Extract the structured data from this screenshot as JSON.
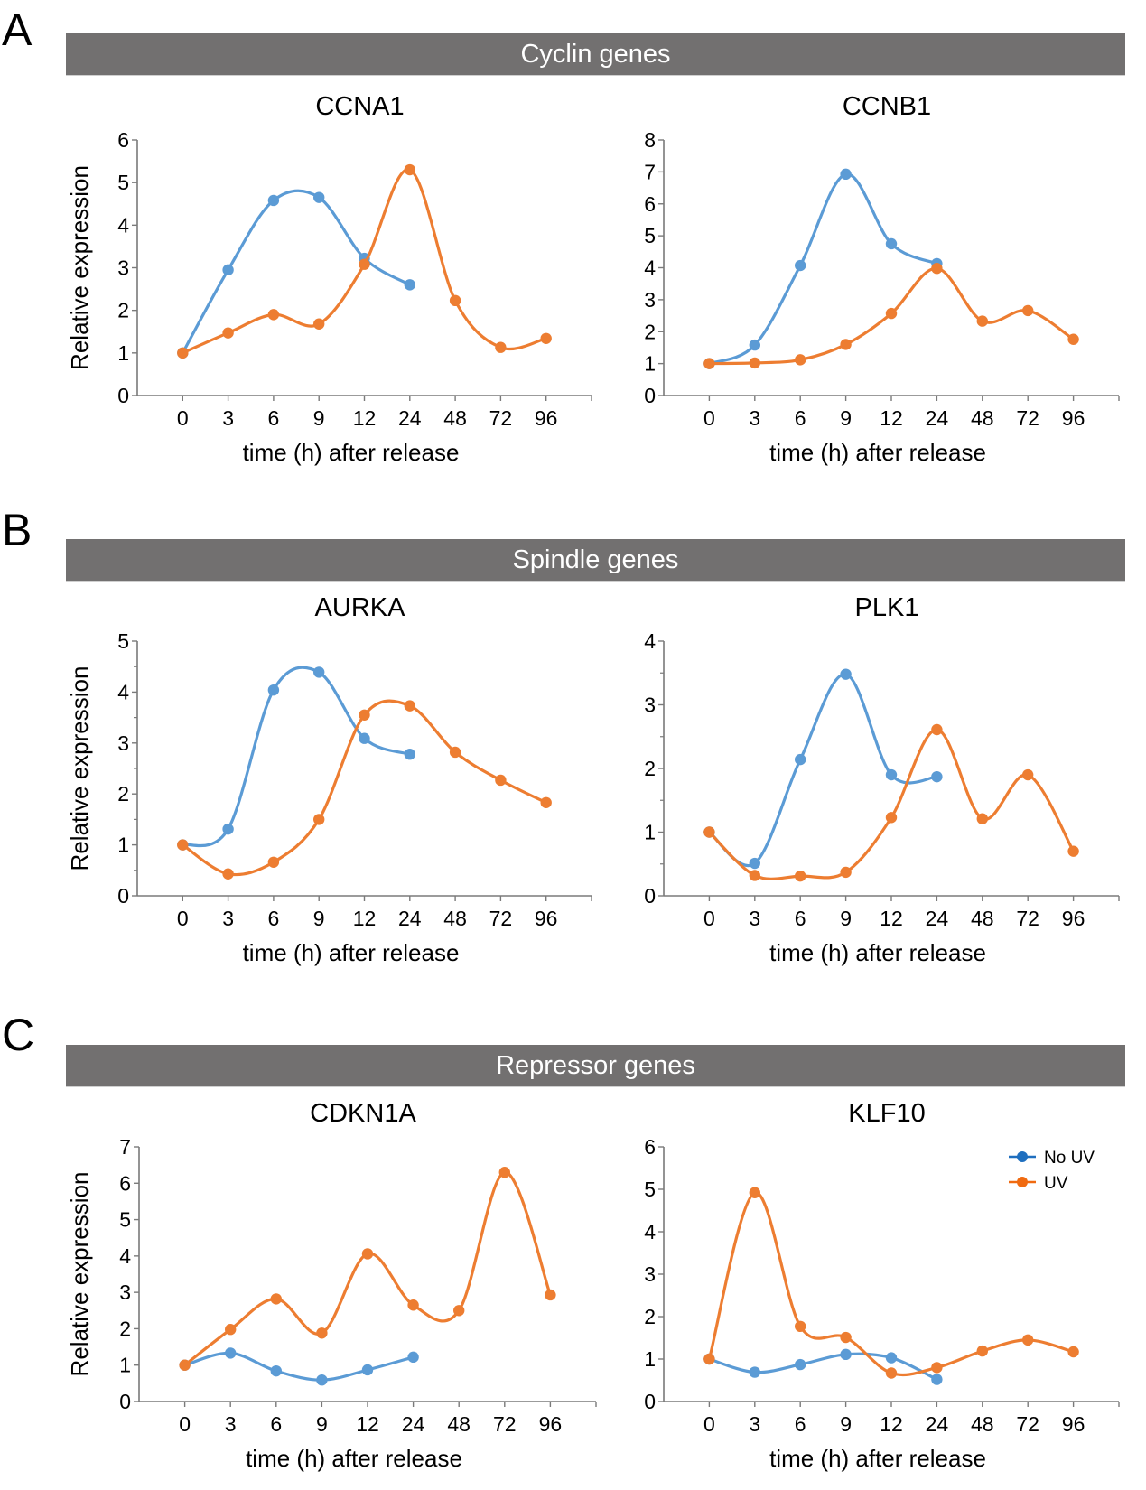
{
  "figure": {
    "sections": [
      {
        "letter": "A",
        "title": "Cyclin genes"
      },
      {
        "letter": "B",
        "title": "Spindle genes"
      },
      {
        "letter": "C",
        "title": "Repressor genes"
      }
    ],
    "legend": {
      "items": [
        {
          "label": "No UV",
          "color": "#1f6fbf"
        },
        {
          "label": "UV",
          "color": "#f06a10"
        }
      ]
    },
    "colors": {
      "no_uv": "#5b9bd5",
      "uv": "#ed7d31",
      "section_bar": "#727070",
      "axis": "#7a7a7a"
    }
  },
  "chart_data": [
    {
      "type": "line",
      "title": "CCNA1",
      "xlabel": "time (h) after release",
      "ylabel": "Relative expression",
      "categories": [
        "0",
        "3",
        "6",
        "9",
        "12",
        "24",
        "48",
        "72",
        "96"
      ],
      "ylim": [
        0,
        6
      ],
      "yticks": [
        0,
        1,
        2,
        3,
        4,
        5,
        6
      ],
      "minor_ticks": false,
      "legend": "none",
      "series": [
        {
          "name": "No UV",
          "values": [
            1.0,
            2.95,
            4.58,
            4.65,
            3.22,
            2.6,
            null,
            null,
            null
          ]
        },
        {
          "name": "UV",
          "values": [
            1.0,
            1.47,
            1.9,
            1.68,
            3.08,
            5.3,
            2.23,
            1.13,
            1.34
          ]
        }
      ]
    },
    {
      "type": "line",
      "title": "CCNB1",
      "xlabel": "time (h) after release",
      "ylabel": "",
      "categories": [
        "0",
        "3",
        "6",
        "9",
        "12",
        "24",
        "48",
        "72",
        "96"
      ],
      "ylim": [
        0,
        8
      ],
      "yticks": [
        0,
        1,
        2,
        3,
        4,
        5,
        6,
        7,
        8
      ],
      "minor_ticks": false,
      "legend": "none",
      "series": [
        {
          "name": "No UV",
          "values": [
            1.0,
            1.58,
            4.07,
            6.93,
            4.75,
            4.13,
            null,
            null,
            null
          ]
        },
        {
          "name": "UV",
          "values": [
            1.0,
            1.02,
            1.12,
            1.6,
            2.57,
            3.98,
            2.33,
            2.66,
            1.76
          ]
        }
      ]
    },
    {
      "type": "line",
      "title": "AURKA",
      "xlabel": "time (h) after release",
      "ylabel": "Relative expression",
      "categories": [
        "0",
        "3",
        "6",
        "9",
        "12",
        "24",
        "48",
        "72",
        "96"
      ],
      "ylim": [
        0,
        5
      ],
      "yticks": [
        0,
        1,
        2,
        3,
        4,
        5
      ],
      "minor_ticks": true,
      "legend": "none",
      "series": [
        {
          "name": "No UV",
          "values": [
            1.0,
            1.31,
            4.04,
            4.39,
            3.09,
            2.78,
            null,
            null,
            null
          ]
        },
        {
          "name": "UV",
          "values": [
            1.0,
            0.43,
            0.66,
            1.5,
            3.55,
            3.73,
            2.82,
            2.27,
            1.83
          ]
        }
      ]
    },
    {
      "type": "line",
      "title": "PLK1",
      "xlabel": "time (h) after release",
      "ylabel": "",
      "categories": [
        "0",
        "3",
        "6",
        "9",
        "12",
        "24",
        "48",
        "72",
        "96"
      ],
      "ylim": [
        0,
        4
      ],
      "yticks": [
        0,
        1,
        2,
        3,
        4
      ],
      "minor_ticks": true,
      "legend": "none",
      "series": [
        {
          "name": "No UV",
          "values": [
            1.0,
            0.51,
            2.14,
            3.48,
            1.9,
            1.87,
            null,
            null,
            null
          ]
        },
        {
          "name": "UV",
          "values": [
            1.0,
            0.32,
            0.31,
            0.37,
            1.23,
            2.61,
            1.21,
            1.9,
            0.7
          ]
        }
      ]
    },
    {
      "type": "line",
      "title": "CDKN1A",
      "xlabel": "time (h) after release",
      "ylabel": "Relative expression",
      "categories": [
        "0",
        "3",
        "6",
        "9",
        "12",
        "24",
        "48",
        "72",
        "96"
      ],
      "ylim": [
        0,
        7
      ],
      "yticks": [
        0,
        1,
        2,
        3,
        4,
        5,
        6,
        7
      ],
      "minor_ticks": false,
      "legend": "none",
      "series": [
        {
          "name": "No UV",
          "values": [
            1.0,
            1.33,
            0.84,
            0.59,
            0.87,
            1.22,
            null,
            null,
            null
          ]
        },
        {
          "name": "UV",
          "values": [
            1.0,
            1.98,
            2.82,
            1.88,
            4.06,
            2.65,
            2.5,
            6.3,
            2.93
          ]
        }
      ]
    },
    {
      "type": "line",
      "title": "KLF10",
      "xlabel": "time (h) after release",
      "ylabel": "",
      "categories": [
        "0",
        "3",
        "6",
        "9",
        "12",
        "24",
        "48",
        "72",
        "96"
      ],
      "ylim": [
        0,
        6
      ],
      "yticks": [
        0,
        1,
        2,
        3,
        4,
        5,
        6
      ],
      "minor_ticks": false,
      "legend": "top-right",
      "series": [
        {
          "name": "No UV",
          "values": [
            1.0,
            0.69,
            0.87,
            1.11,
            1.03,
            0.52,
            null,
            null,
            null
          ]
        },
        {
          "name": "UV",
          "values": [
            1.0,
            4.92,
            1.77,
            1.51,
            0.67,
            0.8,
            1.19,
            1.45,
            1.17
          ]
        }
      ]
    }
  ]
}
